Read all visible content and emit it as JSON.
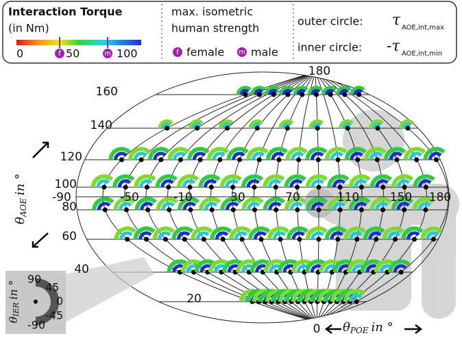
{
  "legend": {
    "title": "Interaction Torque",
    "unit": "(in Nm)",
    "scale": [
      "0",
      "50",
      "100"
    ],
    "female_mark": "f",
    "male_mark": "m",
    "strength_lines": [
      "max. isometric",
      "human strength"
    ],
    "female": "female",
    "male": "male",
    "outer_label": "outer circle:",
    "inner_label": "inner circle:",
    "outer_symbol": "τ",
    "outer_sub": "AOE,int,max",
    "inner_symbol": "-τ",
    "inner_sub": "AOE,int,min"
  },
  "globe": {
    "top_label": "180",
    "bottom_label": "0",
    "elevation_labels": [
      "160",
      "140",
      "120",
      "100",
      "80",
      "60",
      "40",
      "20"
    ],
    "azimuth_labels": [
      "-90",
      "-50",
      "-10",
      "30",
      "70",
      "110",
      "150",
      "180"
    ],
    "elevation_axis": {
      "symbol": "θ",
      "sub": "AOE",
      "unit": "in °"
    },
    "azimuth_axis": {
      "symbol": "θ",
      "sub": "POE",
      "unit": "in °"
    }
  },
  "inset": {
    "symbol": "θ",
    "sub": "IER",
    "unit": "in °",
    "labels": [
      "90",
      "45",
      "0",
      "-45",
      "-90"
    ]
  }
}
